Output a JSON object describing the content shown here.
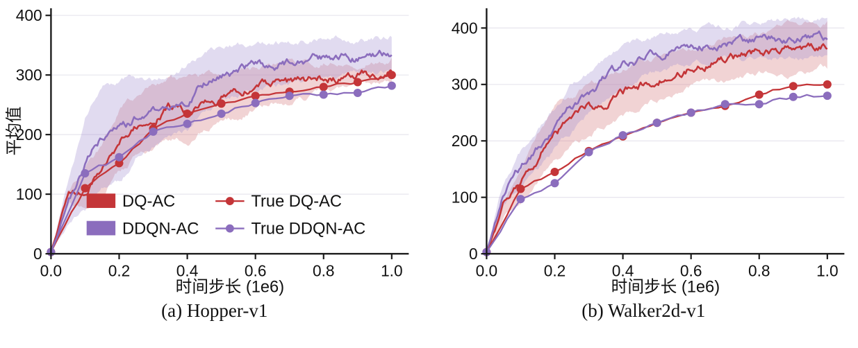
{
  "figure": {
    "background": "#ffffff",
    "captions": [
      "(a) Hopper-v1",
      "(b) Walker2d-v1"
    ]
  },
  "colors": {
    "red": "#c43538",
    "purple": "#8b6dbd",
    "red_band": "#d47a7c",
    "purple_band": "#a391d2",
    "axis": "#1a1a1a",
    "grid": "#e7e5ee"
  },
  "chart_data": [
    {
      "type": "line",
      "caption": "(a) Hopper-v1",
      "xlabel": "时间步长 (1e6)",
      "ylabel": "平均值",
      "xlim": [
        0,
        1.05
      ],
      "ylim": [
        0,
        412
      ],
      "xticks": [
        0,
        0.2,
        0.4,
        0.6,
        0.8,
        1.0
      ],
      "xtick_labels": [
        "0.0",
        "0.2",
        "0.4",
        "0.6",
        "0.8",
        "1.0"
      ],
      "yticks": [
        0,
        100,
        200,
        300,
        400
      ],
      "grid": true,
      "legend_position": "lower center inside",
      "legend": [
        {
          "label": "DQ-AC",
          "swatch": "patch",
          "color": "#c43538"
        },
        {
          "label": "DDQN-AC",
          "swatch": "patch",
          "color": "#8b6dbd"
        },
        {
          "label": "True DQ-AC",
          "swatch": "marker-line",
          "color": "#c43538"
        },
        {
          "label": "True DDQN-AC",
          "swatch": "marker-line",
          "color": "#8b6dbd"
        }
      ],
      "series": [
        {
          "name": "DQ-AC",
          "style": "noisy-line-with-band",
          "color": "#c43538",
          "band_color": "#d47a7c",
          "x": [
            0,
            0.05,
            0.1,
            0.15,
            0.2,
            0.25,
            0.3,
            0.35,
            0.4,
            0.45,
            0.5,
            0.55,
            0.6,
            0.65,
            0.7,
            0.75,
            0.8,
            0.85,
            0.9,
            0.95,
            1.0
          ],
          "mean": [
            3,
            95,
            110,
            140,
            190,
            215,
            230,
            245,
            240,
            255,
            262,
            266,
            278,
            285,
            288,
            292,
            295,
            298,
            300,
            303,
            305
          ],
          "band_half": [
            2,
            15,
            28,
            38,
            48,
            50,
            52,
            50,
            46,
            42,
            40,
            38,
            35,
            32,
            30,
            28,
            27,
            26,
            25,
            25,
            25
          ]
        },
        {
          "name": "DDQN-AC",
          "style": "noisy-line-with-band",
          "color": "#8b6dbd",
          "band_color": "#a391d2",
          "x": [
            0,
            0.05,
            0.1,
            0.15,
            0.2,
            0.25,
            0.3,
            0.35,
            0.4,
            0.45,
            0.5,
            0.55,
            0.6,
            0.65,
            0.7,
            0.75,
            0.8,
            0.85,
            0.9,
            0.95,
            1.0
          ],
          "mean": [
            3,
            85,
            150,
            196,
            205,
            228,
            235,
            248,
            262,
            288,
            302,
            308,
            313,
            318,
            320,
            324,
            328,
            330,
            330,
            333,
            334
          ],
          "band_half": [
            2,
            30,
            80,
            95,
            85,
            65,
            58,
            52,
            60,
            55,
            45,
            42,
            40,
            38,
            36,
            34,
            33,
            32,
            31,
            30,
            30
          ]
        },
        {
          "name": "True DQ-AC",
          "style": "marker-line",
          "color": "#c43538",
          "x": [
            0,
            0.1,
            0.2,
            0.3,
            0.4,
            0.5,
            0.6,
            0.7,
            0.8,
            0.9,
            1.0
          ],
          "y": [
            3,
            110,
            152,
            210,
            235,
            252,
            265,
            272,
            280,
            288,
            300
          ]
        },
        {
          "name": "True DDQN-AC",
          "style": "marker-line",
          "color": "#8b6dbd",
          "x": [
            0,
            0.1,
            0.2,
            0.3,
            0.4,
            0.5,
            0.6,
            0.7,
            0.8,
            0.9,
            1.0
          ],
          "y": [
            3,
            135,
            162,
            205,
            218,
            235,
            253,
            265,
            267,
            270,
            282
          ]
        }
      ]
    },
    {
      "type": "line",
      "caption": "(b) Walker2d-v1",
      "xlabel": "时间步长 (1e6)",
      "ylabel": "",
      "xlim": [
        0,
        1.05
      ],
      "ylim": [
        0,
        435
      ],
      "xticks": [
        0,
        0.2,
        0.4,
        0.6,
        0.8,
        1.0
      ],
      "xtick_labels": [
        "0.0",
        "0.2",
        "0.4",
        "0.6",
        "0.8",
        "1.0"
      ],
      "yticks": [
        0,
        100,
        200,
        300,
        400
      ],
      "grid": true,
      "legend_position": "none",
      "legend": [],
      "series": [
        {
          "name": "DQ-AC",
          "style": "noisy-line-with-band",
          "color": "#c43538",
          "band_color": "#d47a7c",
          "x": [
            0,
            0.05,
            0.1,
            0.15,
            0.2,
            0.25,
            0.3,
            0.35,
            0.4,
            0.45,
            0.5,
            0.55,
            0.6,
            0.65,
            0.7,
            0.75,
            0.8,
            0.85,
            0.9,
            0.95,
            1.0
          ],
          "mean": [
            3,
            80,
            118,
            170,
            215,
            235,
            255,
            270,
            285,
            300,
            310,
            320,
            330,
            338,
            344,
            350,
            355,
            360,
            363,
            366,
            370
          ],
          "band_half": [
            2,
            20,
            32,
            40,
            45,
            45,
            45,
            42,
            40,
            40,
            40,
            38,
            38,
            38,
            38,
            38,
            38,
            40,
            40,
            42,
            42
          ]
        },
        {
          "name": "DDQN-AC",
          "style": "noisy-line-with-band",
          "color": "#8b6dbd",
          "band_color": "#a391d2",
          "x": [
            0,
            0.05,
            0.1,
            0.15,
            0.2,
            0.25,
            0.3,
            0.35,
            0.4,
            0.45,
            0.5,
            0.55,
            0.6,
            0.65,
            0.7,
            0.75,
            0.8,
            0.85,
            0.9,
            0.95,
            1.0
          ],
          "mean": [
            3,
            105,
            150,
            185,
            222,
            258,
            285,
            310,
            330,
            345,
            355,
            362,
            367,
            371,
            374,
            377,
            378,
            380,
            382,
            380,
            385
          ],
          "band_half": [
            2,
            22,
            30,
            34,
            38,
            40,
            40,
            38,
            36,
            34,
            32,
            30,
            30,
            30,
            30,
            30,
            30,
            32,
            32,
            34,
            34
          ]
        },
        {
          "name": "True DQ-AC",
          "style": "marker-line",
          "color": "#c43538",
          "x": [
            0,
            0.1,
            0.2,
            0.3,
            0.4,
            0.5,
            0.6,
            0.7,
            0.8,
            0.9,
            1.0
          ],
          "y": [
            3,
            115,
            145,
            182,
            208,
            232,
            250,
            262,
            282,
            297,
            300
          ]
        },
        {
          "name": "True DDQN-AC",
          "style": "marker-line",
          "color": "#8b6dbd",
          "x": [
            0,
            0.1,
            0.2,
            0.3,
            0.4,
            0.5,
            0.6,
            0.7,
            0.8,
            0.9,
            1.0
          ],
          "y": [
            3,
            97,
            125,
            180,
            210,
            232,
            250,
            265,
            265,
            278,
            280
          ]
        }
      ]
    }
  ]
}
